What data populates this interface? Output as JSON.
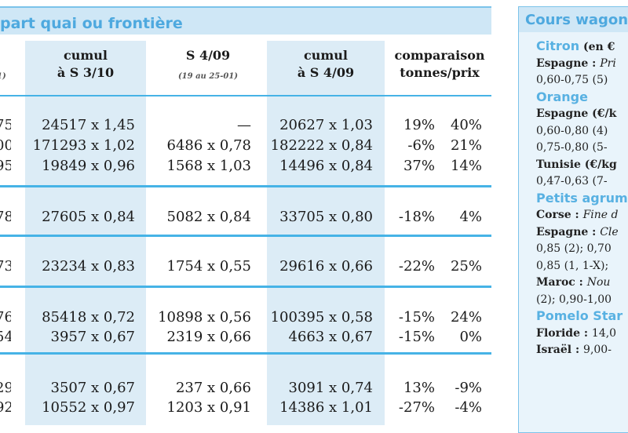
{
  "left_panel": {
    "title": "part quai ou frontière",
    "columns": [
      {
        "line1": "cumul",
        "line2": "à S 3/10",
        "sub": ""
      },
      {
        "line1": "S 4/09",
        "line2": "",
        "sub": "(19 au 25-01)"
      },
      {
        "line1": "cumul",
        "line2": "à S 4/09",
        "sub": ""
      },
      {
        "line1": "comparaison",
        "line2": "tonnes/prix",
        "sub": ""
      }
    ],
    "cut_header": "1)",
    "rows": [
      {
        "cut": "75",
        "c1": "24517 x 1,45",
        "c2": "—",
        "c3": "20627 x 1,03",
        "pct1": "19%",
        "pct2": "40%"
      },
      {
        "cut": "00",
        "c1": "171293 x 1,02",
        "c2": "6486 x 0,78",
        "c3": "182222 x 0,84",
        "pct1": "-6%",
        "pct2": "21%"
      },
      {
        "cut": "95",
        "c1": "19849 x 0,96",
        "c2": "1568 x 1,03",
        "c3": "14496 x 0,84",
        "pct1": "37%",
        "pct2": "14%"
      },
      {
        "cut": "78",
        "c1": "27605 x 0,84",
        "c2": "5082 x 0,84",
        "c3": "33705 x 0,80",
        "pct1": "-18%",
        "pct2": "4%"
      },
      {
        "cut": "73",
        "c1": "23234 x 0,83",
        "c2": "1754 x 0,55",
        "c3": "29616 x 0,66",
        "pct1": "-22%",
        "pct2": "25%"
      },
      {
        "cut": "76",
        "c1": "85418 x 0,72",
        "c2": "10898 x 0,56",
        "c3": "100395 x 0,58",
        "pct1": "-15%",
        "pct2": "24%"
      },
      {
        "cut": "54",
        "c1": "3957 x 0,67",
        "c2": "2319 x 0,66",
        "c3": "4663 x 0,67",
        "pct1": "-15%",
        "pct2": "0%"
      },
      {
        "cut": "29",
        "c1": "3507 x 0,67",
        "c2": "237 x 0,66",
        "c3": "3091 x 0,74",
        "pct1": "13%",
        "pct2": "-9%"
      },
      {
        "cut": "92",
        "c1": "10552 x 0,97",
        "c2": "1203 x 0,91",
        "c3": "14386 x 1,01",
        "pct1": "-27%",
        "pct2": "-4%"
      }
    ]
  },
  "right_panel": {
    "title": "Cours wagon",
    "lines": [
      {
        "kind": "cat",
        "text": "Citron",
        "extra": " (en €"
      },
      {
        "kind": "origin",
        "bold": "Espagne : ",
        "italic": "Pri"
      },
      {
        "kind": "plain",
        "text": "0,60-0,75 (5)"
      },
      {
        "kind": "cat",
        "text": "Orange",
        "extra": ""
      },
      {
        "kind": "origin",
        "bold": "Espagne (€/k",
        "italic": ""
      },
      {
        "kind": "plain",
        "text": "0,60-0,80 (4)"
      },
      {
        "kind": "plain",
        "text": "0,75-0,80 (5-"
      },
      {
        "kind": "origin",
        "bold": "Tunisie (€/kg",
        "italic": ""
      },
      {
        "kind": "plain",
        "text": "0,47-0,63 (7-"
      },
      {
        "kind": "cat",
        "text": "Petits agrum",
        "extra": ""
      },
      {
        "kind": "origin",
        "bold": "Corse : ",
        "italic": "Fine d"
      },
      {
        "kind": "origin",
        "bold": "Espagne : ",
        "italic": "Cle"
      },
      {
        "kind": "plain",
        "text": "0,85 (2); 0,70"
      },
      {
        "kind": "plain",
        "text": "0,85 (1, 1-X);"
      },
      {
        "kind": "origin",
        "bold": "Maroc : ",
        "italic": "Nou"
      },
      {
        "kind": "plain",
        "text": "(2); 0,90-1,00"
      },
      {
        "kind": "cat",
        "text": "Pomelo Star",
        "extra": ""
      },
      {
        "kind": "origin",
        "bold": "Floride : ",
        "italic": "",
        "tail": "14,0"
      },
      {
        "kind": "origin",
        "bold": "Israël : ",
        "italic": "",
        "tail": "9,00-"
      }
    ]
  },
  "colors": {
    "accent_blue": "#4ea9df",
    "rule_blue": "#46b3e6",
    "header_bg": "#cfe7f6",
    "column_shade": "#dcecf6"
  }
}
